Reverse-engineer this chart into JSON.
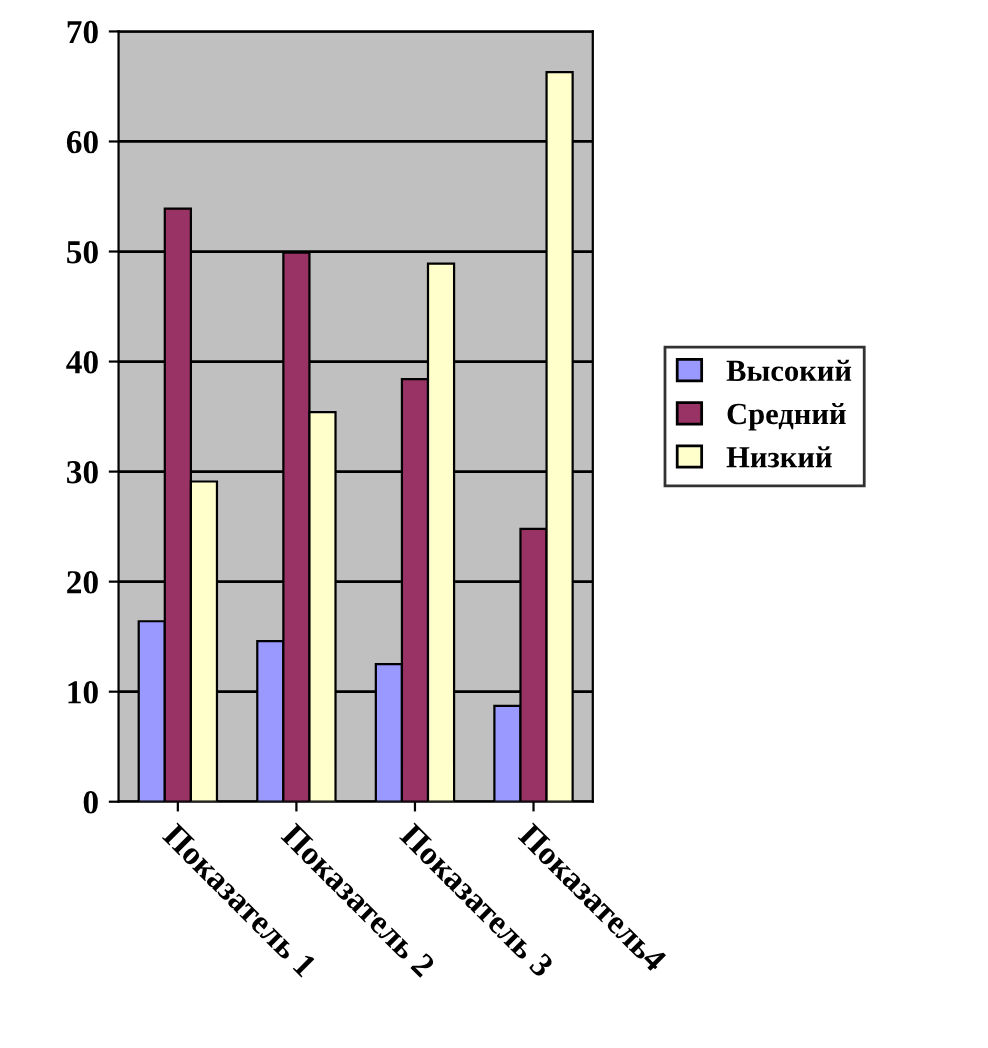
{
  "chart_data": {
    "type": "bar",
    "categories": [
      "Показатель 1",
      "Показатель 2",
      "Показатель 3",
      "Показатель4"
    ],
    "series": [
      {
        "name": "Высокий",
        "color": "#9999ff",
        "values": [
          16.4,
          14.6,
          12.5,
          8.7
        ]
      },
      {
        "name": "Средний",
        "color": "#993366",
        "values": [
          53.9,
          49.9,
          38.4,
          24.8
        ]
      },
      {
        "name": "Низкий",
        "color": "#ffffcc",
        "values": [
          29.1,
          35.4,
          48.9,
          66.3
        ]
      }
    ],
    "ylim": [
      0,
      70
    ],
    "yticks": [
      0,
      10,
      20,
      30,
      40,
      50,
      60,
      70
    ],
    "grid": "y",
    "legend": "right"
  }
}
